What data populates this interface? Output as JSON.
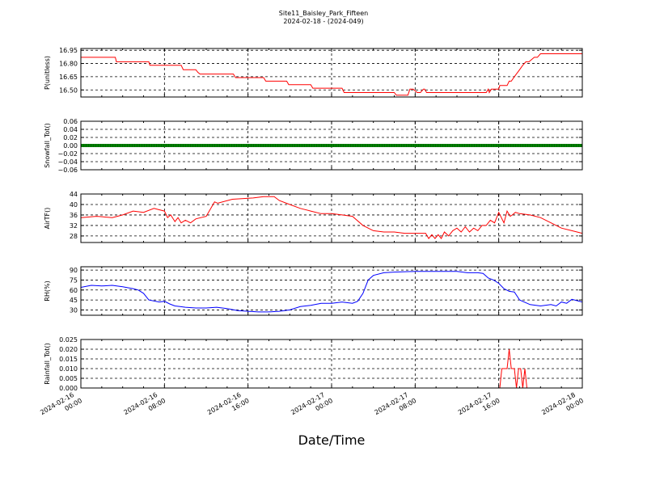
{
  "figure": {
    "title_line1": "Site11_Baisley_Park_Fifteen",
    "title_line2": "2024-02-18 - (2024-049)",
    "xlabel": "Date/Time",
    "x_ticks": [
      {
        "t": 0,
        "line1": "2024-02-16",
        "line2": "00:00"
      },
      {
        "t": 8,
        "line1": "2024-02-16",
        "line2": "08:00"
      },
      {
        "t": 16,
        "line1": "2024-02-16",
        "line2": "16:00"
      },
      {
        "t": 24,
        "line1": "2024-02-17",
        "line2": "00:00"
      },
      {
        "t": 32,
        "line1": "2024-02-17",
        "line2": "08:00"
      },
      {
        "t": 40,
        "line1": "2024-02-17",
        "line2": "16:00"
      },
      {
        "t": 48,
        "line1": "2024-02-18",
        "line2": "00:00"
      }
    ]
  },
  "chart_data": [
    {
      "type": "line",
      "ylabel": "P(unitless)",
      "color": "#ff0000",
      "ylim": [
        16.42,
        16.97
      ],
      "yticks": [
        16.5,
        16.65,
        16.8,
        16.95
      ],
      "ytick_labels": [
        "16.50",
        "16.65",
        "16.80",
        "16.95"
      ],
      "x": [
        0,
        3.3,
        3.4,
        6.5,
        6.6,
        9.6,
        9.8,
        11.0,
        11.2,
        11.4,
        14.6,
        14.8,
        17.5,
        17.7,
        19.7,
        19.9,
        22.0,
        22.2,
        25.0,
        25.2,
        30.0,
        30.2,
        31.0,
        31.3,
        31.5,
        31.6,
        31.8,
        32.2,
        32.5,
        32.8,
        32.9,
        33.1,
        38.8,
        39.0,
        39.1,
        39.3,
        40.0,
        40.1,
        40.8,
        41.0,
        41.2,
        41.5,
        42.0,
        42.3,
        42.6,
        42.9,
        43.4,
        43.7,
        44.0,
        48.0
      ],
      "y": [
        16.87,
        16.87,
        16.82,
        16.82,
        16.78,
        16.78,
        16.73,
        16.73,
        16.7,
        16.68,
        16.68,
        16.64,
        16.64,
        16.6,
        16.6,
        16.56,
        16.56,
        16.52,
        16.52,
        16.47,
        16.47,
        16.44,
        16.44,
        16.44,
        16.51,
        16.51,
        16.51,
        16.47,
        16.47,
        16.51,
        16.51,
        16.47,
        16.47,
        16.51,
        16.47,
        16.51,
        16.51,
        16.55,
        16.55,
        16.6,
        16.6,
        16.65,
        16.73,
        16.78,
        16.82,
        16.82,
        16.87,
        16.87,
        16.91,
        16.91
      ]
    },
    {
      "type": "line",
      "ylabel": "Snowfall_Tot()",
      "color": "#008000",
      "ylim": [
        -0.06,
        0.06
      ],
      "yticks": [
        -0.06,
        -0.04,
        -0.02,
        0.0,
        0.02,
        0.04,
        0.06
      ],
      "ytick_labels": [
        "−0.06",
        "−0.04",
        "−0.02",
        "0.00",
        "0.02",
        "0.04",
        "0.06"
      ],
      "x": [
        0,
        48
      ],
      "y": [
        0,
        0
      ]
    },
    {
      "type": "line",
      "ylabel": "AirTF()",
      "color": "#ff0000",
      "ylim": [
        25.5,
        44
      ],
      "yticks": [
        28,
        32,
        36,
        40,
        44
      ],
      "ytick_labels": [
        "28",
        "32",
        "36",
        "40",
        "44"
      ],
      "x": [
        0,
        1.5,
        3.0,
        4.0,
        5.0,
        6.0,
        7.0,
        7.5,
        8.0,
        8.3,
        8.6,
        9.0,
        9.3,
        9.6,
        10.0,
        10.5,
        11.0,
        11.5,
        12.0,
        12.8,
        13.1,
        14.5,
        16.5,
        17.5,
        18.5,
        19.0,
        20.0,
        21.0,
        22.0,
        23.0,
        24.0,
        25.0,
        26.0,
        27.0,
        28.0,
        29.0,
        30.0,
        31.0,
        32.0,
        33.0,
        33.3,
        33.6,
        33.9,
        34.2,
        34.5,
        34.8,
        35.2,
        35.6,
        36.0,
        36.4,
        36.8,
        37.2,
        37.6,
        38.0,
        38.4,
        38.8,
        39.2,
        39.6,
        40.0,
        40.5,
        40.8,
        41.1,
        41.3,
        41.6,
        42.0,
        43.0,
        44.0,
        45.0,
        46.0,
        47.0,
        48.0
      ],
      "y": [
        35.0,
        35.5,
        35.0,
        36.0,
        37.5,
        37.0,
        38.5,
        38.0,
        37.5,
        35.0,
        36.0,
        33.5,
        35.0,
        33.0,
        34.0,
        33.0,
        34.5,
        35.0,
        35.5,
        41.0,
        40.5,
        42.0,
        42.5,
        43.0,
        43.0,
        41.5,
        40.0,
        38.5,
        37.5,
        36.5,
        36.5,
        36.0,
        35.5,
        32.0,
        30.0,
        29.5,
        29.5,
        29.0,
        29.0,
        29.0,
        27.0,
        28.5,
        27.0,
        28.5,
        27.0,
        29.5,
        28.0,
        30.0,
        31.0,
        29.5,
        31.5,
        29.5,
        31.0,
        30.0,
        32.0,
        32.0,
        34.0,
        33.0,
        37.0,
        33.0,
        37.5,
        35.5,
        36.0,
        37.0,
        36.5,
        36.0,
        35.0,
        33.0,
        31.0,
        30.0,
        29.0
      ]
    },
    {
      "type": "line",
      "ylabel": "RH(%)",
      "color": "#0000ff",
      "ylim": [
        22,
        95
      ],
      "yticks": [
        30,
        45,
        60,
        75,
        90
      ],
      "ytick_labels": [
        "30",
        "45",
        "60",
        "75",
        "90"
      ],
      "x": [
        0,
        1.0,
        2.0,
        3.0,
        4.0,
        5.0,
        5.5,
        6.0,
        6.5,
        7.5,
        8.0,
        8.5,
        9.0,
        9.5,
        10.0,
        11.0,
        12.0,
        13.0,
        14.0,
        15.0,
        16.0,
        17.0,
        18.0,
        19.0,
        20.0,
        21.0,
        22.0,
        23.0,
        24.0,
        25.0,
        26.0,
        26.5,
        27.0,
        27.5,
        28.0,
        29.0,
        30.0,
        32.0,
        34.0,
        36.0,
        37.0,
        38.0,
        38.5,
        39.0,
        39.5,
        40.0,
        40.5,
        41.0,
        41.5,
        42.0,
        43.0,
        44.0,
        45.0,
        45.5,
        46.0,
        46.5,
        47.0,
        48.0
      ],
      "y": [
        64.0,
        67.0,
        66.0,
        67.0,
        65.0,
        62.0,
        60.0,
        55.0,
        45.0,
        42.0,
        43.0,
        39.0,
        36.0,
        35.0,
        34.0,
        33.0,
        33.0,
        34.0,
        32.0,
        29.0,
        28.0,
        27.0,
        27.0,
        28.0,
        30.0,
        35.0,
        37.0,
        40.0,
        40.0,
        42.0,
        40.0,
        43.0,
        55.0,
        75.0,
        82.0,
        86.0,
        87.0,
        88.0,
        88.0,
        88.0,
        86.0,
        86.0,
        85.0,
        78.0,
        75.0,
        70.0,
        62.0,
        58.0,
        57.0,
        45.0,
        38.0,
        36.0,
        38.0,
        36.0,
        42.0,
        40.0,
        46.0,
        42.0
      ]
    },
    {
      "type": "line",
      "ylabel": "Rainfall_Tot()",
      "color": "#ff0000",
      "ylim": [
        0,
        0.025
      ],
      "yticks": [
        0.0,
        0.005,
        0.01,
        0.015,
        0.02,
        0.025
      ],
      "ytick_labels": [
        "0.000",
        "0.005",
        "0.010",
        "0.015",
        "0.020",
        "0.025"
      ],
      "x": [
        0,
        40.1,
        40.3,
        40.8,
        41.0,
        41.2,
        41.5,
        41.7,
        41.9,
        42.1,
        42.3,
        42.5,
        42.7,
        48.0
      ],
      "y": [
        0,
        0,
        0.01,
        0.01,
        0.02,
        0.01,
        0.01,
        0.0,
        0.01,
        0.01,
        0.0,
        0.01,
        0.0,
        0.0
      ]
    }
  ]
}
